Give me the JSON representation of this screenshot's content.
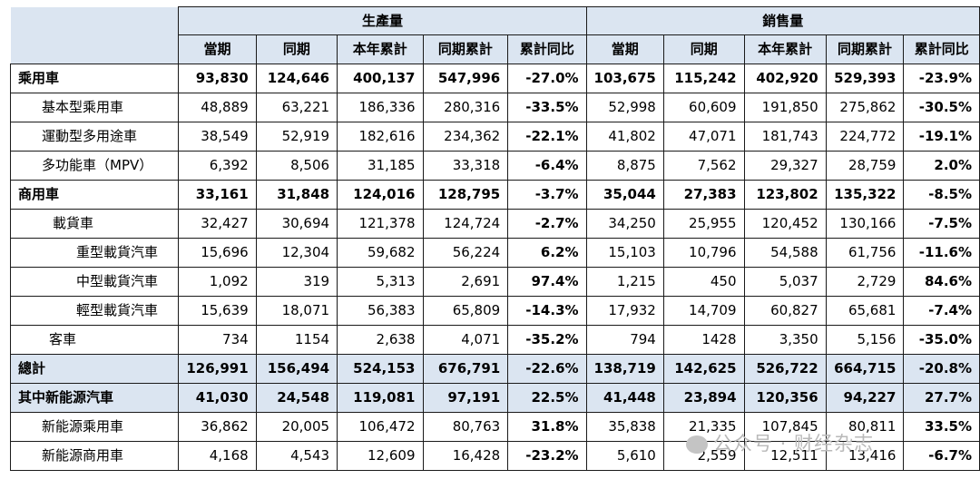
{
  "headers": {
    "group_production": "生產量",
    "group_sales": "銷售量",
    "columns": [
      "當期",
      "同期",
      "本年累計",
      "同期累計",
      "累計同比",
      "當期",
      "同期",
      "本年累計",
      "同期累計",
      "累計同比"
    ]
  },
  "rows": [
    {
      "name": "乘用車",
      "level": 0,
      "shade": false,
      "values": [
        "93,830",
        "124,646",
        "400,137",
        "547,996",
        "-27.0%",
        "103,675",
        "115,242",
        "402,920",
        "529,393",
        "-23.9%"
      ]
    },
    {
      "name": "基本型乘用車",
      "level": 1,
      "shade": false,
      "values": [
        "48,889",
        "63,221",
        "186,336",
        "280,316",
        "-33.5%",
        "52,998",
        "60,609",
        "191,850",
        "275,862",
        "-30.5%"
      ]
    },
    {
      "name": "運動型多用途車",
      "level": 1,
      "shade": false,
      "values": [
        "38,549",
        "52,919",
        "182,616",
        "234,362",
        "-22.1%",
        "41,802",
        "47,071",
        "181,743",
        "224,772",
        "-19.1%"
      ]
    },
    {
      "name": "多功能車（MPV）",
      "level": 1,
      "shade": false,
      "values": [
        "6,392",
        "8,506",
        "31,185",
        "33,318",
        "-6.4%",
        "8,875",
        "7,562",
        "29,327",
        "28,759",
        "2.0%"
      ]
    },
    {
      "name": "商用車",
      "level": 0,
      "shade": false,
      "values": [
        "33,161",
        "31,848",
        "124,016",
        "128,795",
        "-3.7%",
        "35,044",
        "27,383",
        "123,802",
        "135,322",
        "-8.5%"
      ]
    },
    {
      "name": "載貨車",
      "level": 2,
      "shade": false,
      "values": [
        "32,427",
        "30,694",
        "121,378",
        "124,724",
        "-2.7%",
        "34,250",
        "25,955",
        "120,452",
        "130,166",
        "-7.5%"
      ]
    },
    {
      "name": "重型載貨汽車",
      "level": 3,
      "shade": false,
      "values": [
        "15,696",
        "12,304",
        "59,682",
        "56,224",
        "6.2%",
        "15,103",
        "10,796",
        "54,588",
        "61,756",
        "-11.6%"
      ]
    },
    {
      "name": "中型載貨汽車",
      "level": 3,
      "shade": false,
      "values": [
        "1,092",
        "319",
        "5,313",
        "2,691",
        "97.4%",
        "1,215",
        "450",
        "5,037",
        "2,729",
        "84.6%"
      ]
    },
    {
      "name": "輕型載貨汽車",
      "level": 3,
      "shade": false,
      "values": [
        "15,639",
        "18,071",
        "56,383",
        "65,809",
        "-14.3%",
        "17,932",
        "14,709",
        "60,827",
        "65,681",
        "-7.4%"
      ]
    },
    {
      "name": "客車",
      "level": 4,
      "shade": false,
      "values": [
        "734",
        "1154",
        "2,638",
        "4,071",
        "-35.2%",
        "794",
        "1428",
        "3,350",
        "5,156",
        "-35.0%"
      ]
    },
    {
      "name": "總計",
      "level": 0,
      "shade": true,
      "values": [
        "126,991",
        "156,494",
        "524,153",
        "676,791",
        "-22.6%",
        "138,719",
        "142,625",
        "526,722",
        "664,715",
        "-20.8%"
      ]
    },
    {
      "name": "其中新能源汽車",
      "level": 0,
      "shade": true,
      "values": [
        "41,030",
        "24,548",
        "119,081",
        "97,191",
        "22.5%",
        "41,448",
        "23,894",
        "120,356",
        "94,227",
        "27.7%"
      ]
    },
    {
      "name": "新能源乘用車",
      "level": 1,
      "shade": false,
      "values": [
        "36,862",
        "20,005",
        "106,472",
        "80,763",
        "31.8%",
        "35,838",
        "21,335",
        "107,845",
        "80,811",
        "33.5%"
      ]
    },
    {
      "name": "新能源商用車",
      "level": 1,
      "shade": false,
      "values": [
        "4,168",
        "4,543",
        "12,609",
        "16,428",
        "-23.2%",
        "5,610",
        "2,559",
        "12,511",
        "13,416",
        "-6.7%"
      ]
    }
  ],
  "watermark": "公众号 · 财经杂志"
}
